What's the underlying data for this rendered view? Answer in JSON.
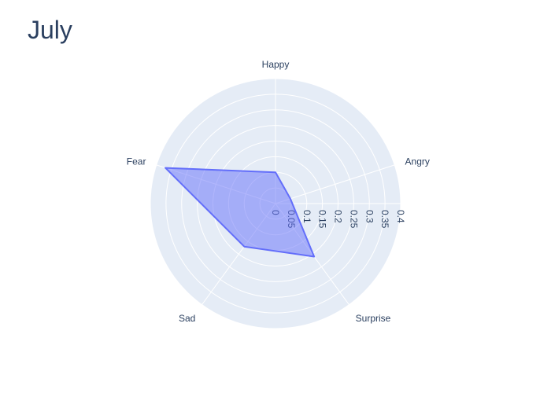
{
  "chart_data": {
    "type": "radar",
    "title": "July",
    "categories": [
      "Happy",
      "Angry",
      "Surprise",
      "Sad",
      "Fear"
    ],
    "series": [
      {
        "values": [
          0.1,
          0.05,
          0.21,
          0.17,
          0.37
        ],
        "color": "#636efa"
      }
    ],
    "radial_ticks": [
      "0",
      "0.05",
      "0.1",
      "0.15",
      "0.2",
      "0.25",
      "0.3",
      "0.35",
      "0.4"
    ],
    "radial_range": [
      0,
      0.4
    ],
    "grid": true,
    "legend": false,
    "colors": {
      "polar_background": "#e5ecf6",
      "grid": "#ffffff",
      "text": "#2a3f5f",
      "fill": "rgba(99,110,250,0.5)",
      "line": "#636efa"
    }
  }
}
